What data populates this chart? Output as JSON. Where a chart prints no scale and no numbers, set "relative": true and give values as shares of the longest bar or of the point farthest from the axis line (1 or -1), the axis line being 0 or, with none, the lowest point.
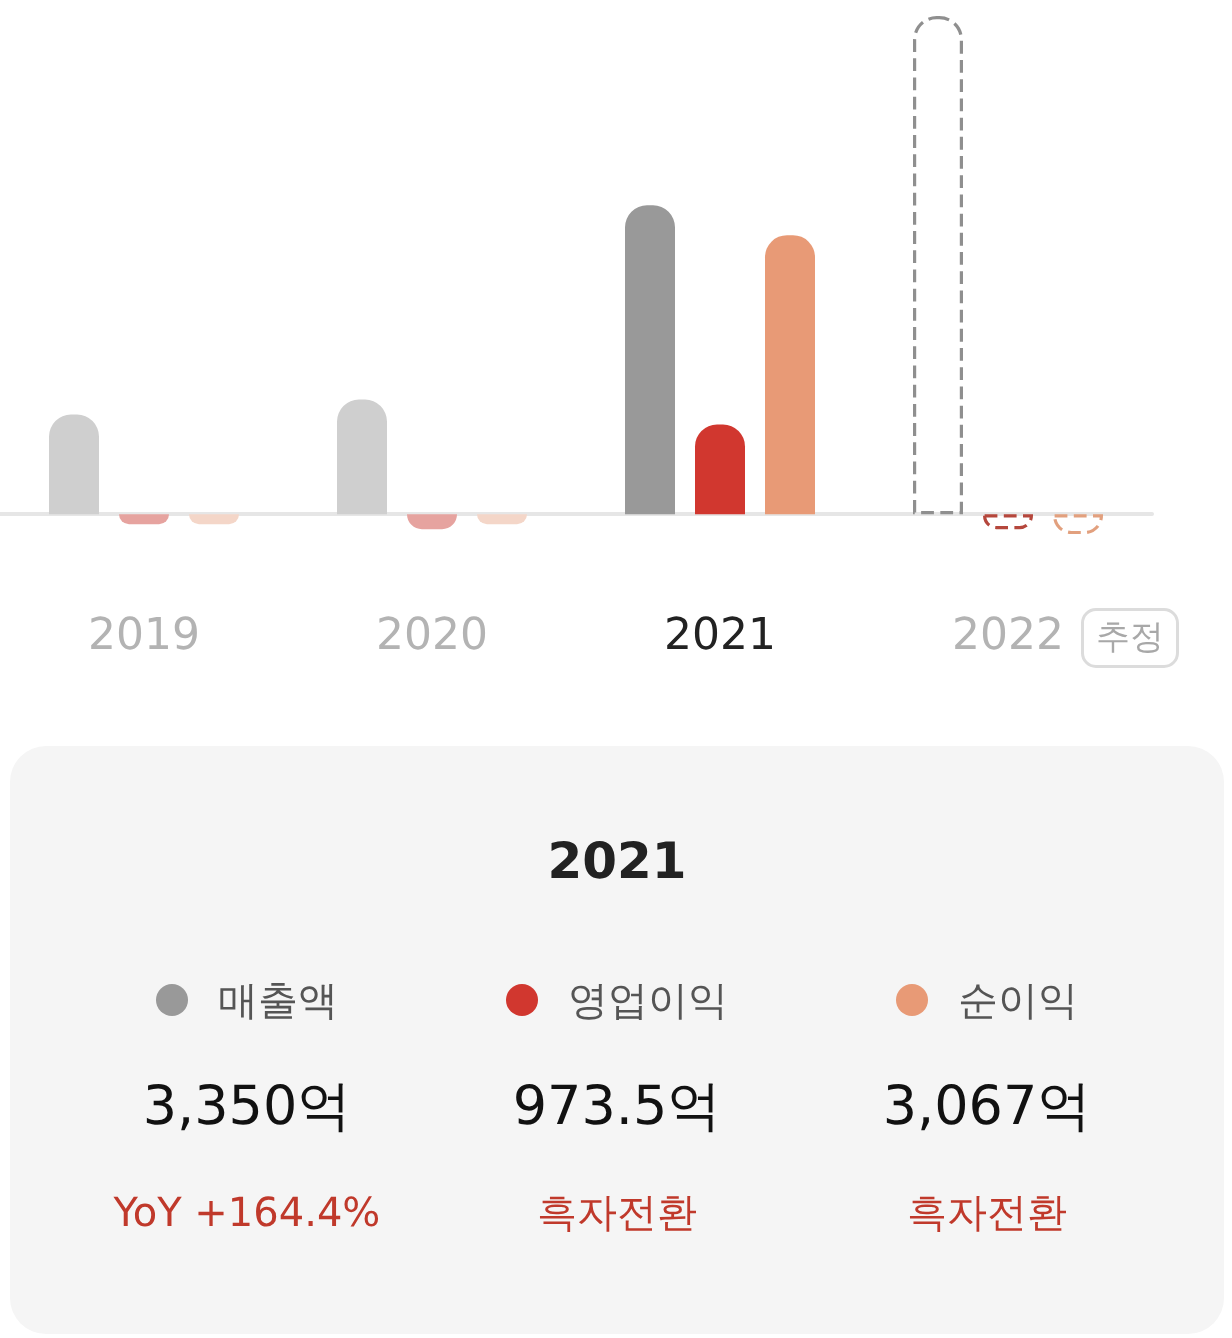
{
  "chart_data": [
    {
      "type": "bar",
      "relative": true,
      "categories": [
        "2019",
        "2020",
        "2021",
        "2022"
      ],
      "series": [
        {
          "color": "#999999",
          "colors": [
            "#cfcfcf",
            "#cfcfcf",
            "#999999",
            null
          ],
          "values": [
            0.2,
            0.23,
            0.62,
            null
          ]
        },
        {
          "color": "#d1372f",
          "colors": [
            "#e6a39f",
            "#e6a39f",
            "#d1372f",
            null
          ],
          "values": [
            -0.02,
            -0.03,
            0.18,
            null
          ]
        },
        {
          "color": "#e89a76",
          "colors": [
            "#f4d6c8",
            "#f4d6c8",
            "#e89a76",
            null
          ],
          "values": [
            -0.02,
            -0.02,
            0.56,
            null
          ]
        },
        {
          "color": "#8f8f8f",
          "line_style": "dashed",
          "values": [
            null,
            null,
            null,
            1
          ]
        },
        {
          "color": "#b5473c",
          "line_style": "dashed",
          "values": [
            null,
            null,
            null,
            -0.03
          ]
        },
        {
          "color": "#e2a07e",
          "line_style": "dashed",
          "values": [
            null,
            null,
            null,
            -0.04
          ]
        }
      ],
      "annotations": [
        "추정"
      ]
    },
    {
      "type": "other",
      "title": "2021",
      "categories": [
        "매출액",
        "영업이익",
        "순이익"
      ],
      "colors": [
        "#999999",
        "#d1372f",
        "#e89a76"
      ],
      "value_labels": [
        "3,350억",
        "973.5억",
        "3,067억"
      ],
      "annotations": [
        "YoY +164.4%",
        "흑자전환",
        "흑자전환"
      ]
    }
  ]
}
